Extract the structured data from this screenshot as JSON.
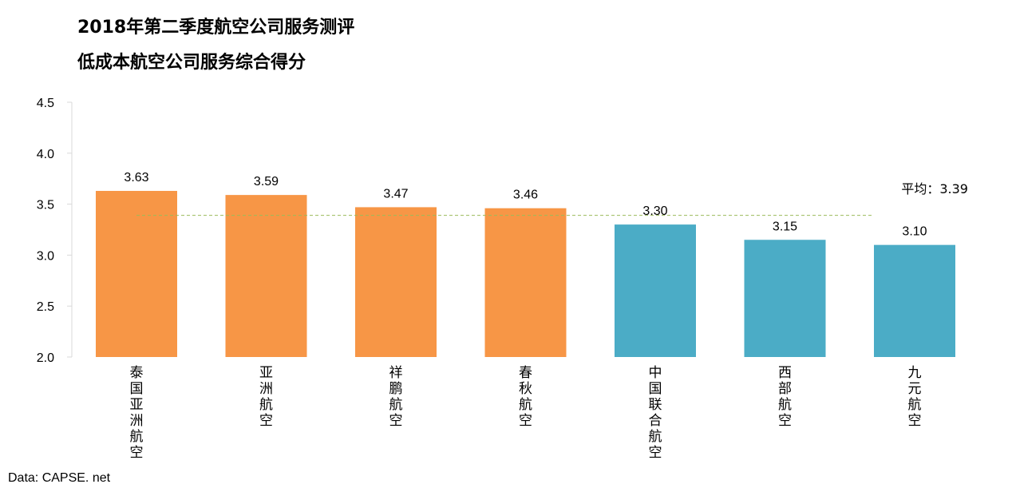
{
  "chart_data": {
    "type": "bar",
    "title": "2018年第二季度航空公司服务测评",
    "subtitle": "低成本航空公司服务综合得分",
    "categories": [
      "泰国亚洲航空",
      "亚洲航空",
      "祥鹏航空",
      "春秋航空",
      "中国联合航空",
      "西部航空",
      "九元航空"
    ],
    "values": [
      3.63,
      3.59,
      3.47,
      3.46,
      3.3,
      3.15,
      3.1
    ],
    "value_labels": [
      "3.63",
      "3.59",
      "3.47",
      "3.46",
      "3.30",
      "3.15",
      "3.10"
    ],
    "bar_colors": [
      "#F79646",
      "#F79646",
      "#F79646",
      "#F79646",
      "#4BACC6",
      "#4BACC6",
      "#4BACC6"
    ],
    "ylim": [
      2.0,
      4.5
    ],
    "yticks": [
      "2.0",
      "2.5",
      "3.0",
      "3.5",
      "4.0",
      "4.5"
    ],
    "average": {
      "value": 3.39,
      "label": "平均：3.39",
      "color": "#9BBB59",
      "style": "dashed"
    },
    "grid": false,
    "legend": "none",
    "xlabel": "",
    "ylabel": ""
  },
  "source": "Data: CAPSE. net"
}
